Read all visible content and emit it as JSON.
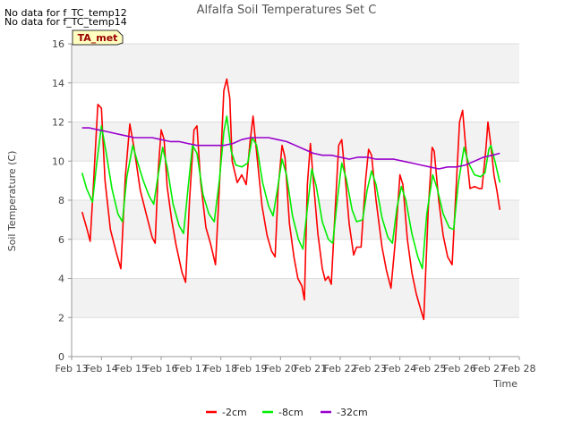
{
  "notes": [
    "No data for f_TC_temp12",
    "No data for f_TC_temp14"
  ],
  "badge": "TA_met",
  "chart_data": {
    "type": "line",
    "title": "Alfalfa Soil Temperatures Set C",
    "xlabel": "Time",
    "ylabel": "Soil Temperature (C)",
    "ylim": [
      0,
      16
    ],
    "xlim": [
      13,
      28
    ],
    "yticks": [
      0,
      2,
      4,
      6,
      8,
      10,
      12,
      14,
      16
    ],
    "xticks": [
      13,
      14,
      15,
      16,
      17,
      18,
      19,
      20,
      21,
      22,
      23,
      24,
      25,
      26,
      27,
      28
    ],
    "xtick_labels": [
      "Feb 13",
      "Feb 14",
      "Feb 15",
      "Feb 16",
      "Feb 17",
      "Feb 18",
      "Feb 19",
      "Feb 20",
      "Feb 21",
      "Feb 22",
      "Feb 23",
      "Feb 24",
      "Feb 25",
      "Feb 26",
      "Feb 27",
      "Feb 28"
    ],
    "grid": "horizontal bands",
    "legend_position": "bottom",
    "series": [
      {
        "name": "-2cm",
        "color": "#ff0000",
        "points": [
          [
            13.35,
            7.4
          ],
          [
            13.5,
            6.6
          ],
          [
            13.62,
            5.9
          ],
          [
            13.72,
            8.5
          ],
          [
            13.88,
            12.9
          ],
          [
            14.0,
            12.7
          ],
          [
            14.12,
            9.0
          ],
          [
            14.3,
            6.5
          ],
          [
            14.5,
            5.3
          ],
          [
            14.65,
            4.5
          ],
          [
            14.8,
            9.2
          ],
          [
            14.95,
            11.9
          ],
          [
            15.1,
            10.6
          ],
          [
            15.3,
            8.5
          ],
          [
            15.5,
            7.3
          ],
          [
            15.7,
            6.1
          ],
          [
            15.8,
            5.8
          ],
          [
            15.9,
            9.5
          ],
          [
            16.0,
            11.6
          ],
          [
            16.1,
            11.1
          ],
          [
            16.2,
            8.7
          ],
          [
            16.35,
            7.0
          ],
          [
            16.5,
            5.7
          ],
          [
            16.7,
            4.3
          ],
          [
            16.82,
            3.8
          ],
          [
            16.95,
            8.0
          ],
          [
            17.1,
            11.6
          ],
          [
            17.2,
            11.8
          ],
          [
            17.32,
            9.0
          ],
          [
            17.5,
            6.6
          ],
          [
            17.65,
            5.8
          ],
          [
            17.82,
            4.7
          ],
          [
            18.0,
            10.2
          ],
          [
            18.1,
            13.6
          ],
          [
            18.2,
            14.2
          ],
          [
            18.3,
            13.2
          ],
          [
            18.38,
            10.0
          ],
          [
            18.55,
            8.9
          ],
          [
            18.7,
            9.3
          ],
          [
            18.85,
            8.8
          ],
          [
            18.98,
            11.0
          ],
          [
            19.08,
            12.3
          ],
          [
            19.2,
            10.4
          ],
          [
            19.38,
            7.7
          ],
          [
            19.55,
            6.2
          ],
          [
            19.7,
            5.4
          ],
          [
            19.82,
            5.1
          ],
          [
            19.92,
            8.6
          ],
          [
            20.05,
            10.8
          ],
          [
            20.15,
            10.2
          ],
          [
            20.3,
            6.8
          ],
          [
            20.45,
            5.1
          ],
          [
            20.58,
            4.0
          ],
          [
            20.72,
            3.6
          ],
          [
            20.8,
            2.9
          ],
          [
            20.9,
            8.8
          ],
          [
            21.0,
            10.9
          ],
          [
            21.1,
            9.0
          ],
          [
            21.25,
            6.3
          ],
          [
            21.4,
            4.5
          ],
          [
            21.5,
            3.9
          ],
          [
            21.6,
            4.1
          ],
          [
            21.7,
            3.7
          ],
          [
            21.82,
            7.2
          ],
          [
            21.95,
            10.8
          ],
          [
            22.05,
            11.1
          ],
          [
            22.15,
            9.5
          ],
          [
            22.3,
            6.8
          ],
          [
            22.45,
            5.2
          ],
          [
            22.55,
            5.6
          ],
          [
            22.7,
            5.6
          ],
          [
            22.85,
            9.0
          ],
          [
            22.95,
            10.6
          ],
          [
            23.05,
            10.3
          ],
          [
            23.2,
            8.0
          ],
          [
            23.4,
            5.6
          ],
          [
            23.55,
            4.4
          ],
          [
            23.7,
            3.5
          ],
          [
            23.85,
            6.0
          ],
          [
            24.0,
            9.3
          ],
          [
            24.1,
            8.8
          ],
          [
            24.25,
            6.0
          ],
          [
            24.4,
            4.3
          ],
          [
            24.55,
            3.2
          ],
          [
            24.7,
            2.4
          ],
          [
            24.8,
            1.9
          ],
          [
            24.95,
            7.5
          ],
          [
            25.08,
            10.7
          ],
          [
            25.15,
            10.5
          ],
          [
            25.3,
            8.0
          ],
          [
            25.45,
            6.2
          ],
          [
            25.6,
            5.1
          ],
          [
            25.75,
            4.7
          ],
          [
            25.88,
            8.5
          ],
          [
            26.0,
            12.0
          ],
          [
            26.1,
            12.6
          ],
          [
            26.2,
            10.8
          ],
          [
            26.35,
            8.6
          ],
          [
            26.5,
            8.7
          ],
          [
            26.65,
            8.6
          ],
          [
            26.75,
            8.6
          ],
          [
            26.88,
            10.6
          ],
          [
            26.95,
            12.0
          ],
          [
            27.05,
            10.8
          ],
          [
            27.15,
            9.3
          ],
          [
            27.25,
            8.5
          ],
          [
            27.35,
            7.5
          ]
        ]
      },
      {
        "name": "-8cm",
        "color": "#00ee00",
        "points": [
          [
            13.35,
            9.4
          ],
          [
            13.5,
            8.6
          ],
          [
            13.7,
            7.9
          ],
          [
            13.85,
            10.0
          ],
          [
            14.0,
            11.8
          ],
          [
            14.15,
            10.5
          ],
          [
            14.35,
            8.6
          ],
          [
            14.55,
            7.3
          ],
          [
            14.7,
            6.9
          ],
          [
            14.85,
            9.2
          ],
          [
            15.05,
            10.8
          ],
          [
            15.2,
            10.0
          ],
          [
            15.4,
            9.0
          ],
          [
            15.6,
            8.2
          ],
          [
            15.75,
            7.8
          ],
          [
            15.9,
            9.3
          ],
          [
            16.05,
            10.7
          ],
          [
            16.2,
            9.7
          ],
          [
            16.4,
            7.8
          ],
          [
            16.6,
            6.7
          ],
          [
            16.75,
            6.3
          ],
          [
            16.9,
            8.6
          ],
          [
            17.05,
            10.8
          ],
          [
            17.2,
            10.4
          ],
          [
            17.4,
            8.3
          ],
          [
            17.6,
            7.3
          ],
          [
            17.78,
            6.9
          ],
          [
            17.95,
            9.0
          ],
          [
            18.1,
            11.5
          ],
          [
            18.2,
            12.3
          ],
          [
            18.35,
            10.5
          ],
          [
            18.5,
            9.8
          ],
          [
            18.7,
            9.7
          ],
          [
            18.9,
            9.9
          ],
          [
            19.05,
            11.2
          ],
          [
            19.2,
            10.8
          ],
          [
            19.4,
            8.9
          ],
          [
            19.6,
            7.7
          ],
          [
            19.75,
            7.2
          ],
          [
            19.9,
            8.6
          ],
          [
            20.05,
            10.1
          ],
          [
            20.2,
            9.3
          ],
          [
            20.4,
            7.2
          ],
          [
            20.6,
            6.0
          ],
          [
            20.75,
            5.5
          ],
          [
            20.9,
            7.6
          ],
          [
            21.05,
            9.6
          ],
          [
            21.2,
            8.7
          ],
          [
            21.4,
            6.9
          ],
          [
            21.6,
            6.0
          ],
          [
            21.75,
            5.8
          ],
          [
            21.9,
            8.0
          ],
          [
            22.05,
            9.9
          ],
          [
            22.2,
            9.1
          ],
          [
            22.4,
            7.5
          ],
          [
            22.55,
            6.9
          ],
          [
            22.75,
            7.0
          ],
          [
            22.9,
            8.5
          ],
          [
            23.05,
            9.5
          ],
          [
            23.2,
            8.8
          ],
          [
            23.4,
            7.1
          ],
          [
            23.6,
            6.1
          ],
          [
            23.75,
            5.8
          ],
          [
            23.9,
            7.6
          ],
          [
            24.05,
            8.7
          ],
          [
            24.2,
            8.0
          ],
          [
            24.4,
            6.3
          ],
          [
            24.6,
            5.1
          ],
          [
            24.75,
            4.5
          ],
          [
            24.9,
            7.3
          ],
          [
            25.1,
            9.3
          ],
          [
            25.25,
            8.6
          ],
          [
            25.45,
            7.3
          ],
          [
            25.65,
            6.6
          ],
          [
            25.8,
            6.5
          ],
          [
            25.95,
            8.8
          ],
          [
            26.15,
            10.7
          ],
          [
            26.3,
            9.9
          ],
          [
            26.5,
            9.3
          ],
          [
            26.7,
            9.2
          ],
          [
            26.85,
            9.4
          ],
          [
            26.98,
            10.6
          ],
          [
            27.05,
            10.8
          ],
          [
            27.2,
            9.9
          ],
          [
            27.35,
            8.9
          ]
        ]
      },
      {
        "name": "-32cm",
        "color": "#9900cc",
        "points": [
          [
            13.35,
            11.7
          ],
          [
            13.6,
            11.7
          ],
          [
            13.9,
            11.6
          ],
          [
            14.2,
            11.5
          ],
          [
            14.5,
            11.4
          ],
          [
            14.8,
            11.3
          ],
          [
            15.1,
            11.2
          ],
          [
            15.4,
            11.2
          ],
          [
            15.7,
            11.2
          ],
          [
            16.0,
            11.1
          ],
          [
            16.3,
            11.0
          ],
          [
            16.6,
            11.0
          ],
          [
            16.9,
            10.9
          ],
          [
            17.2,
            10.8
          ],
          [
            17.5,
            10.8
          ],
          [
            17.8,
            10.8
          ],
          [
            18.1,
            10.8
          ],
          [
            18.4,
            10.9
          ],
          [
            18.7,
            11.1
          ],
          [
            19.0,
            11.2
          ],
          [
            19.3,
            11.2
          ],
          [
            19.6,
            11.2
          ],
          [
            19.9,
            11.1
          ],
          [
            20.2,
            11.0
          ],
          [
            20.5,
            10.8
          ],
          [
            20.8,
            10.6
          ],
          [
            21.1,
            10.4
          ],
          [
            21.4,
            10.3
          ],
          [
            21.7,
            10.3
          ],
          [
            22.0,
            10.2
          ],
          [
            22.3,
            10.1
          ],
          [
            22.6,
            10.2
          ],
          [
            22.9,
            10.2
          ],
          [
            23.2,
            10.1
          ],
          [
            23.5,
            10.1
          ],
          [
            23.8,
            10.1
          ],
          [
            24.1,
            10.0
          ],
          [
            24.4,
            9.9
          ],
          [
            24.7,
            9.8
          ],
          [
            25.0,
            9.7
          ],
          [
            25.3,
            9.6
          ],
          [
            25.6,
            9.7
          ],
          [
            25.9,
            9.7
          ],
          [
            26.2,
            9.8
          ],
          [
            26.5,
            10.0
          ],
          [
            26.8,
            10.2
          ],
          [
            27.1,
            10.3
          ],
          [
            27.35,
            10.4
          ]
        ]
      }
    ]
  }
}
